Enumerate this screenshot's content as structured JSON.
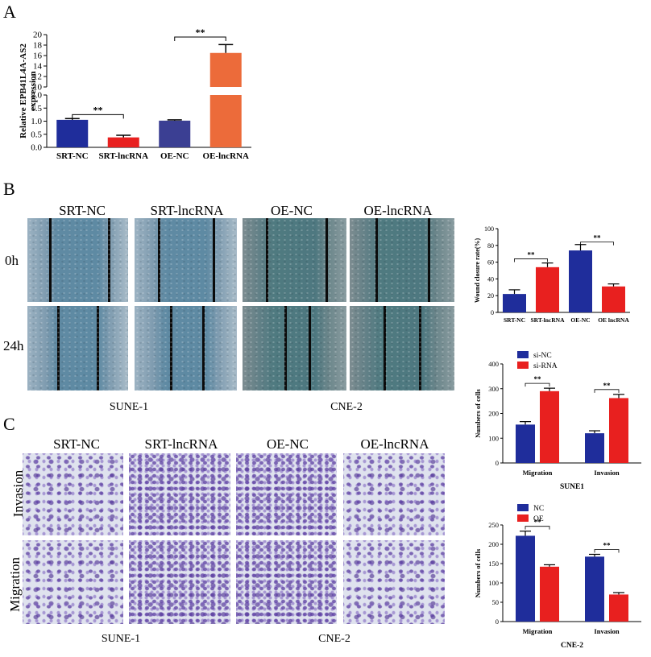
{
  "panels": {
    "a": "A",
    "b": "B",
    "c": "C"
  },
  "groups": [
    "SRT-NC",
    "SRT-lncRNA",
    "OE-NC",
    "OE-lncRNA"
  ],
  "panel_b": {
    "rows": [
      "0h",
      "24h"
    ],
    "cell_lines": [
      "SUNE-1",
      "CNE-2"
    ]
  },
  "panel_c": {
    "rows": [
      "Invasion",
      "Migration"
    ],
    "cell_lines": [
      "SUNE-1",
      "CNE-2"
    ]
  },
  "chart_data": [
    {
      "id": "expression",
      "type": "bar",
      "ylabel": "Relative EPB41L4A-AS2 expression",
      "categories": [
        "SRT-NC",
        "SRT-lncRNA",
        "OE-NC",
        "OE-lncRNA"
      ],
      "values": [
        1.05,
        0.38,
        1.02,
        16.5
      ],
      "errors": [
        0.05,
        0.08,
        0.03,
        1.6
      ],
      "colors": [
        "#1f2d9b",
        "#e8201f",
        "#3b3f93",
        "#ec6b3a"
      ],
      "ylim": [
        0,
        20
      ],
      "axis_break": [
        2.0,
        10.0
      ],
      "yticks_low": [
        "0.0",
        "0.5",
        "1.0",
        "1.5",
        "2.0"
      ],
      "yticks_high": [
        "10",
        "12",
        "14",
        "16",
        "18",
        "20"
      ],
      "significance": [
        {
          "label": "**",
          "from": 0,
          "to": 1
        },
        {
          "label": "**",
          "from": 2,
          "to": 3
        }
      ]
    },
    {
      "id": "wound",
      "type": "bar",
      "ylabel": "Wound closure rate(%)",
      "categories": [
        "SRT-NC",
        "SRT-lncRNA",
        "OE-NC",
        "OE lncRNA"
      ],
      "values": [
        22,
        54,
        74,
        31
      ],
      "errors": [
        5,
        5,
        7,
        3
      ],
      "colors": [
        "#1f2d9b",
        "#e8201f",
        "#1f2d9b",
        "#e8201f"
      ],
      "ylim": [
        0,
        100
      ],
      "yticks": [
        "0",
        "20",
        "40",
        "60",
        "80",
        "100"
      ],
      "significance": [
        {
          "label": "**",
          "from": 0,
          "to": 1
        },
        {
          "label": "**",
          "from": 2,
          "to": 3
        }
      ]
    },
    {
      "id": "sune1",
      "type": "bar",
      "title": "SUNE1",
      "ylabel": "Numbers of cells",
      "categories": [
        "Migration",
        "Invasion"
      ],
      "series": [
        {
          "name": "si-NC",
          "color": "#1f2d9b",
          "values": [
            155,
            120
          ],
          "errors": [
            12,
            10
          ]
        },
        {
          "name": "si-RNA",
          "color": "#e8201f",
          "values": [
            290,
            262
          ],
          "errors": [
            12,
            15
          ]
        }
      ],
      "ylim": [
        0,
        400
      ],
      "yticks": [
        "0",
        "100",
        "200",
        "300",
        "400"
      ],
      "legend": "top-left",
      "significance": [
        "**",
        "**"
      ]
    },
    {
      "id": "cne2",
      "type": "bar",
      "title": "CNE-2",
      "ylabel": "Numbers of cells",
      "categories": [
        "Migration",
        "Invasion"
      ],
      "series": [
        {
          "name": "NC",
          "color": "#1f2d9b",
          "values": [
            222,
            168
          ],
          "errors": [
            12,
            6
          ]
        },
        {
          "name": "OE",
          "color": "#e8201f",
          "values": [
            142,
            70
          ],
          "errors": [
            5,
            5
          ]
        }
      ],
      "ylim": [
        0,
        250
      ],
      "yticks": [
        "0",
        "50",
        "100",
        "150",
        "200",
        "250"
      ],
      "legend": "top-left",
      "significance": [
        "**",
        "**"
      ]
    }
  ]
}
